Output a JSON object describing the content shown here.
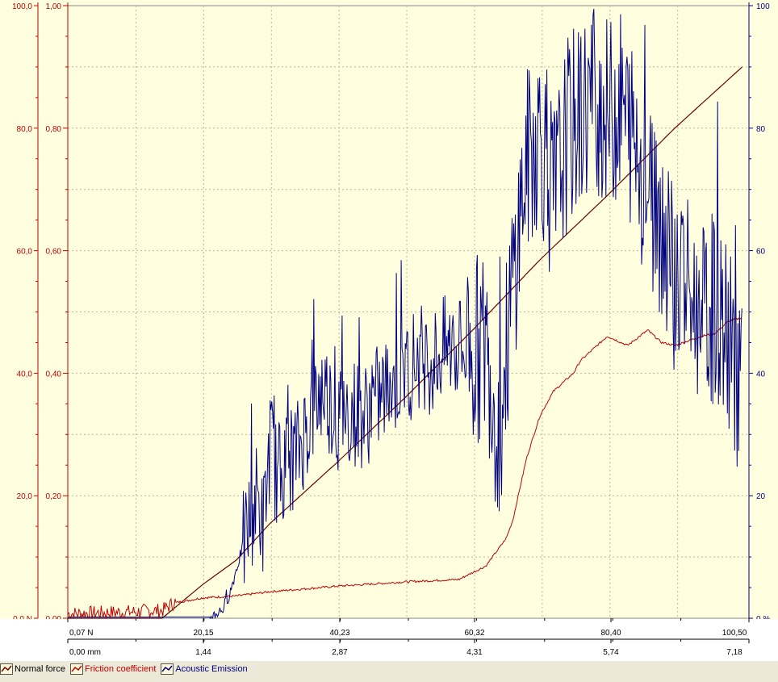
{
  "chart_data": {
    "type": "line",
    "colors": {
      "background": "#ffffe0",
      "grid": "#b7b7a0",
      "normal_force": "#6b0000",
      "friction": "#c00000",
      "acoustic": "#000080",
      "left_axis": "#c00000",
      "right_axis": "#000080"
    },
    "left_axis_force": {
      "ticks": [
        "0,0 N",
        "20,0",
        "40,0",
        "60,0",
        "80,0",
        "100,0"
      ],
      "range": [
        0,
        100
      ]
    },
    "left_axis_friction": {
      "ticks": [
        "0,00",
        "0,20",
        "0,40",
        "0,60",
        "0,80",
        "1,00"
      ],
      "range": [
        0,
        1
      ]
    },
    "right_axis": {
      "ticks": [
        "0 %",
        "20",
        "40",
        "60",
        "80",
        "100"
      ],
      "range": [
        0,
        100
      ]
    },
    "x_axis_force": {
      "ticks": [
        "0,07 N",
        "20,15",
        "40,23",
        "60,32",
        "80,40",
        "100,50"
      ],
      "range": [
        0.07,
        100.5
      ]
    },
    "x_axis_distance": {
      "ticks": [
        "0,00 mm",
        "1,44",
        "2,87",
        "4,31",
        "5,74",
        "7,18"
      ],
      "range": [
        0,
        7.18
      ]
    },
    "series": [
      {
        "name": "Normal force",
        "x": [
          0,
          14,
          20,
          25,
          30,
          40,
          50,
          60,
          70,
          80,
          90,
          100
        ],
        "y": [
          0,
          0,
          5.5,
          9.5,
          15.5,
          25.5,
          36,
          47,
          58.5,
          69,
          80,
          90
        ]
      },
      {
        "name": "Friction coefficient",
        "x": [
          0,
          10,
          12,
          14,
          16,
          20,
          25,
          30,
          40,
          50,
          58,
          62,
          65,
          66,
          68,
          70,
          72,
          75,
          76,
          80,
          83,
          86,
          88,
          90,
          94,
          96,
          98,
          100
        ],
        "y": [
          0.005,
          0.008,
          0.01,
          0.01,
          0.025,
          0.033,
          0.036,
          0.043,
          0.052,
          0.059,
          0.063,
          0.085,
          0.13,
          0.16,
          0.26,
          0.33,
          0.37,
          0.4,
          0.42,
          0.46,
          0.445,
          0.47,
          0.45,
          0.445,
          0.46,
          0.465,
          0.485,
          0.49
        ]
      },
      {
        "name": "Acoustic Emission",
        "x": [
          21,
          23,
          24,
          25,
          26,
          27,
          28,
          29,
          30,
          31,
          32,
          34,
          36,
          38,
          40,
          42,
          44,
          46,
          48,
          50,
          52,
          54,
          56,
          58,
          60,
          62,
          64,
          66,
          67,
          68,
          70,
          72,
          74,
          76,
          78,
          80,
          82,
          84,
          86,
          88,
          90,
          92,
          94,
          96,
          98,
          100
        ],
        "y": [
          0,
          1.5,
          4,
          8,
          12,
          16,
          20,
          15,
          29,
          23,
          25,
          27,
          33,
          38,
          32,
          34,
          33,
          36,
          38,
          40,
          43,
          42,
          44,
          44,
          43,
          45,
          30,
          55,
          65,
          74,
          80,
          68,
          79,
          82,
          86,
          82,
          84,
          78,
          70,
          65,
          56,
          53,
          48,
          51,
          45,
          38
        ]
      }
    ],
    "legend": [
      "Normal force",
      "Friction coefficient",
      "Acoustic Emission"
    ],
    "grid": true
  }
}
